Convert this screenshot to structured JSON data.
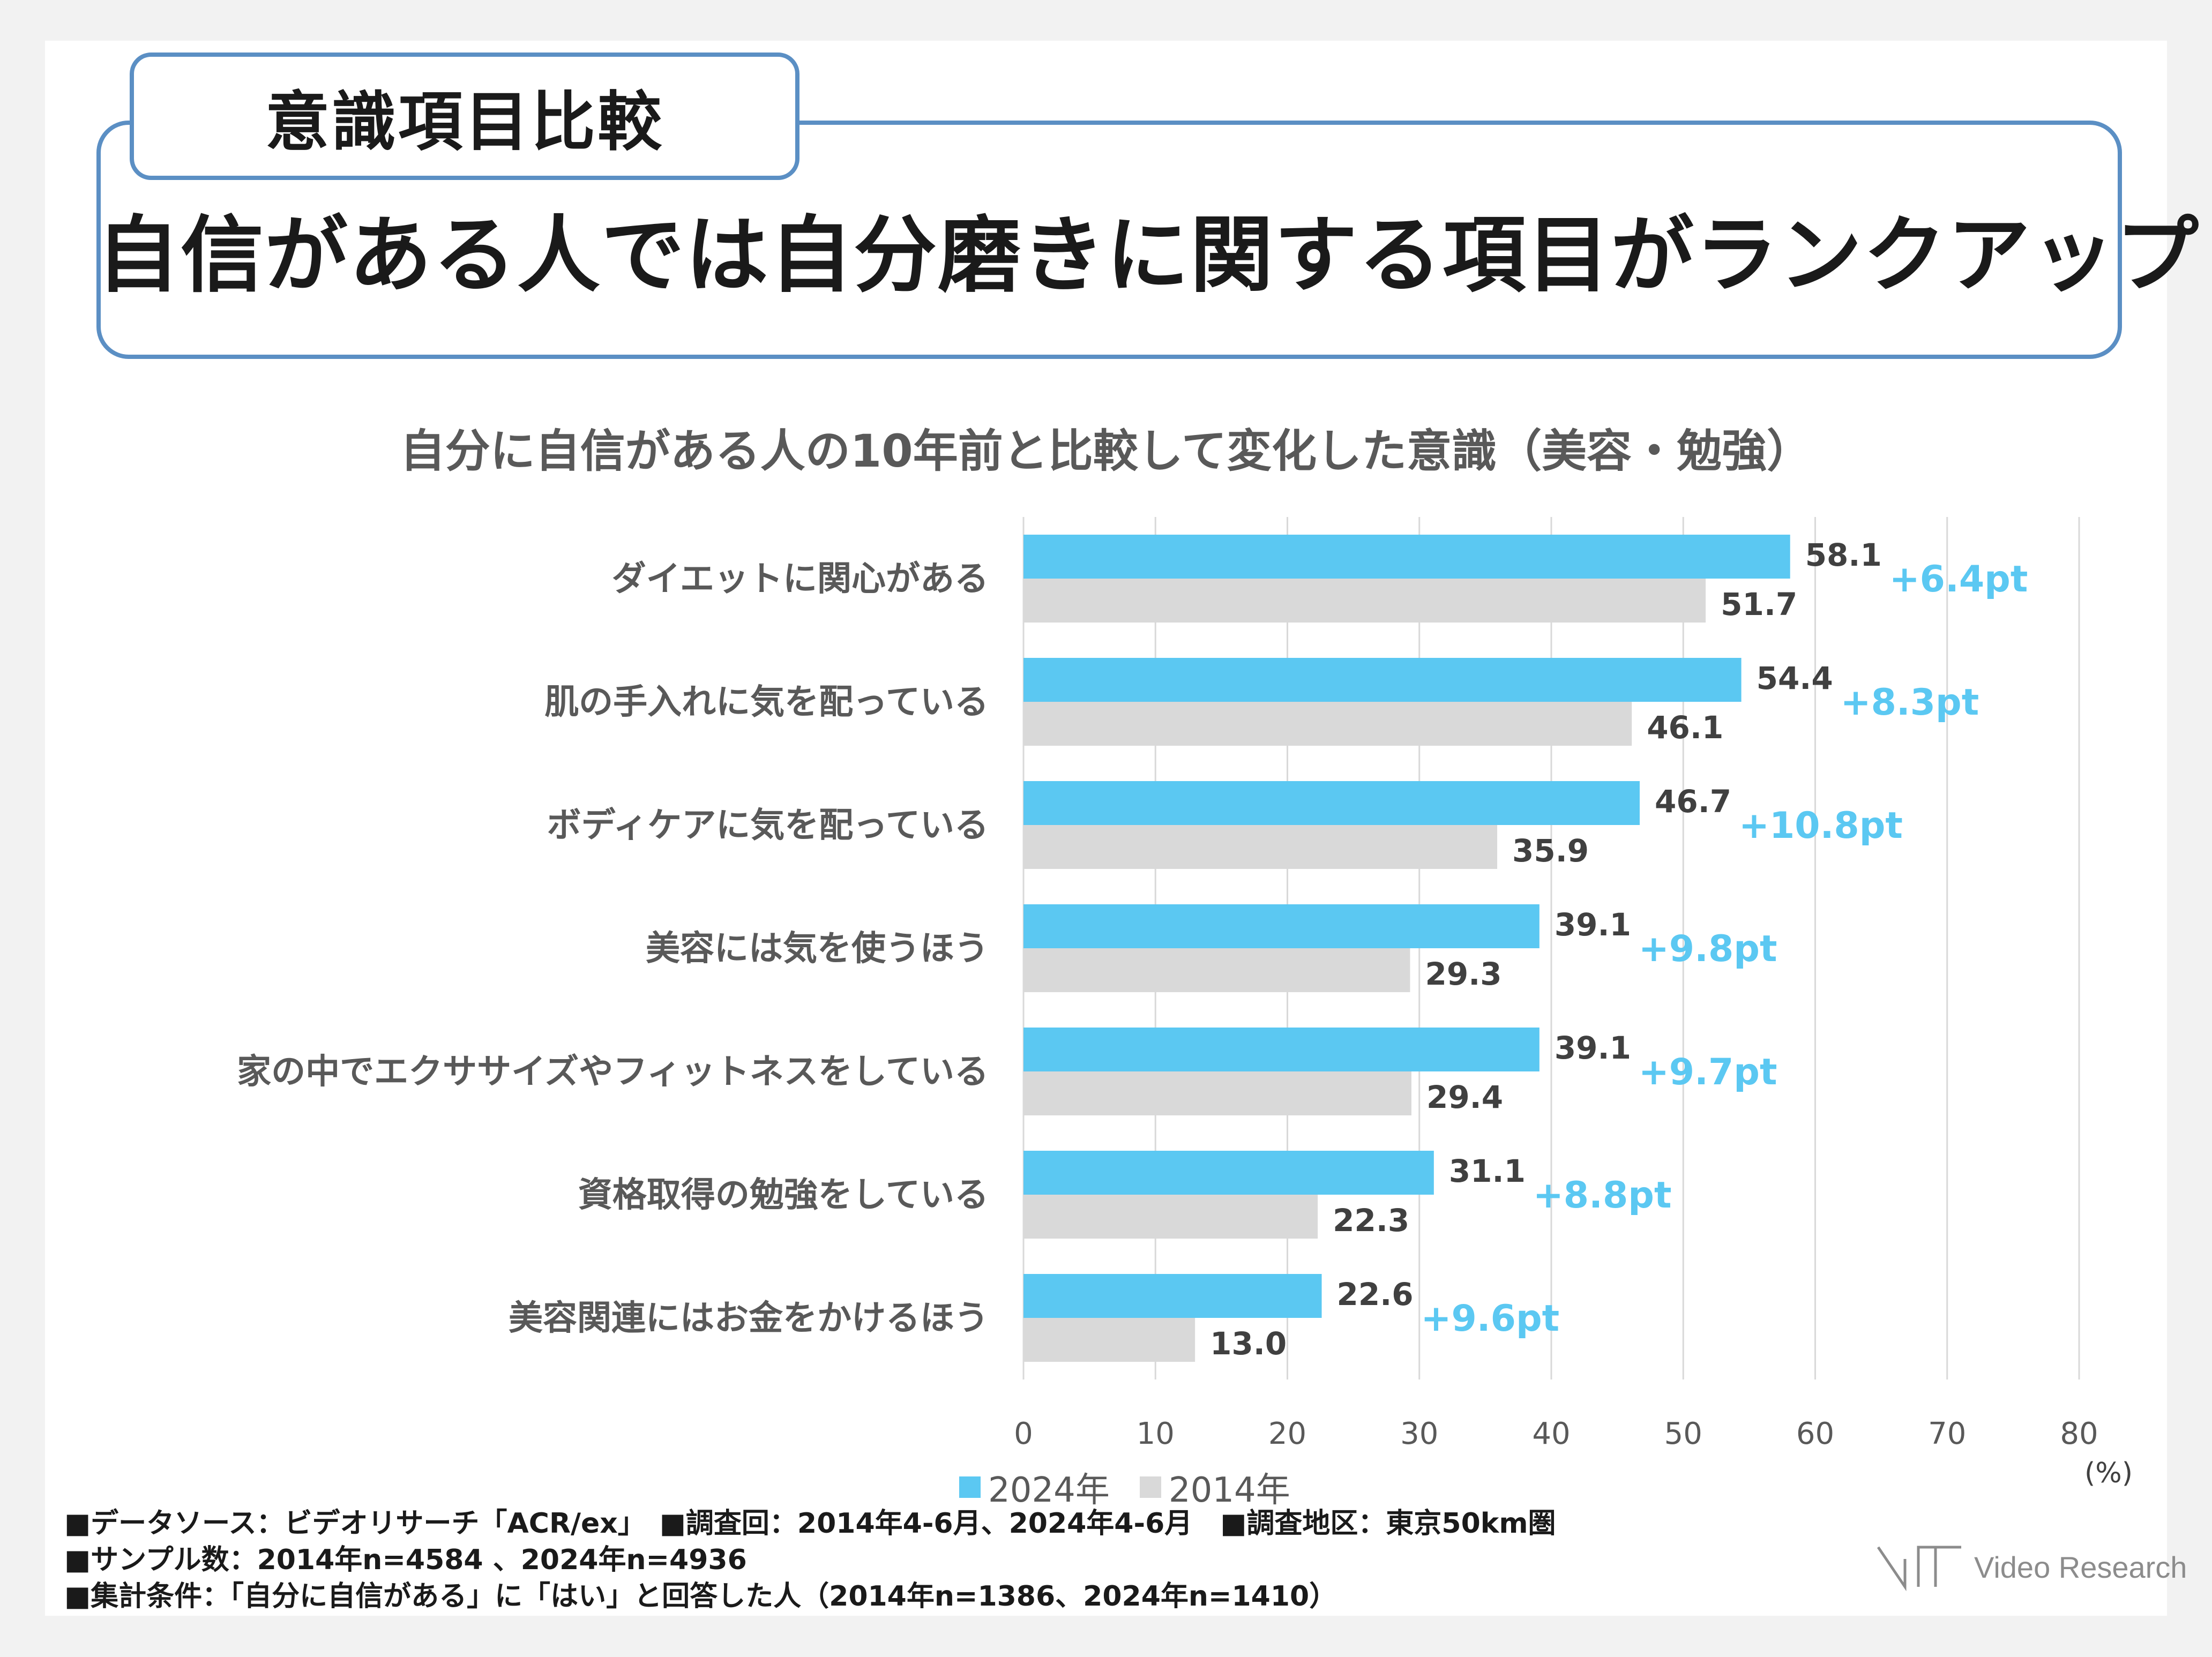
{
  "header": {
    "tag": "意識項目比較",
    "headline": "自信がある人では自分磨きに関する項目がランクアップ"
  },
  "chart_data": {
    "type": "bar",
    "orientation": "horizontal",
    "title": "自分に自信がある人の10年前と比較して変化した意識（美容・勉強）",
    "categories": [
      "ダイエットに関心がある",
      "肌の手入れに気を配っている",
      "ボディケアに気を配っている",
      "美容には気を使うほう",
      "家の中でエクササイズやフィットネスをしている",
      "資格取得の勉強をしている",
      "美容関連にはお金をかけるほう"
    ],
    "series": [
      {
        "name": "2024年",
        "color": "#5bc8f2",
        "values": [
          58.1,
          54.4,
          46.7,
          39.1,
          39.1,
          31.1,
          22.6
        ],
        "labels": [
          "58.1",
          "54.4",
          "46.7",
          "39.1",
          "39.1",
          "31.1",
          "22.6"
        ]
      },
      {
        "name": "2014年",
        "color": "#d9d9d9",
        "values": [
          51.7,
          46.1,
          35.9,
          29.3,
          29.4,
          22.3,
          13.0
        ],
        "labels": [
          "51.7",
          "46.1",
          "35.9",
          "29.3",
          "29.4",
          "22.3",
          "13.0"
        ]
      }
    ],
    "differences": [
      "+6.4pt",
      "+8.3pt",
      "+10.8pt",
      "+9.8pt",
      "+9.7pt",
      "+8.8pt",
      "+9.6pt"
    ],
    "xlim": [
      0,
      80
    ],
    "xticks": [
      "0",
      "10",
      "20",
      "30",
      "40",
      "50",
      "60",
      "70",
      "80"
    ],
    "unit": "(%)",
    "grid": true,
    "legend_position": "bottom"
  },
  "notes": [
    "■データソース：ビデオリサーチ「ACR/ex」　■調査回：2014年4-6月、2024年4-6月　■調査地区：東京50km圏",
    "■サンプル数：2014年n=4584 、2024年n=4936",
    "■集計条件：「自分に自信がある」に「はい」と回答した人（2014年n=1386、2024年n=1410）"
  ],
  "brand": {
    "name": "Video Research",
    "logo_icon": "video-research-logo-icon"
  }
}
